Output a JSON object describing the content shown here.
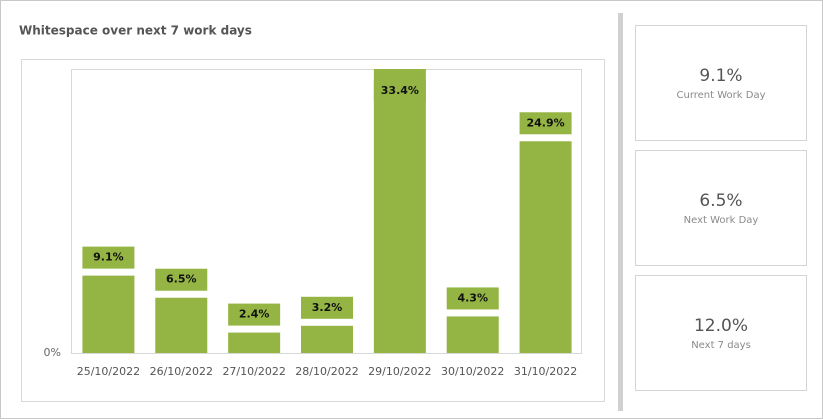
{
  "chart_data": {
    "type": "bar",
    "title": "Whitespace over next 7 work days",
    "categories": [
      "25/10/2022",
      "26/10/2022",
      "27/10/2022",
      "28/10/2022",
      "29/10/2022",
      "30/10/2022",
      "31/10/2022"
    ],
    "values": [
      9.1,
      6.5,
      2.4,
      3.2,
      33.4,
      4.3,
      24.9
    ],
    "value_labels": [
      "9.1%",
      "6.5%",
      "2.4%",
      "3.2%",
      "33.4%",
      "4.3%",
      "24.9%"
    ],
    "color": "#94b543",
    "ylim": [
      0,
      33.4
    ],
    "yticks": [
      {
        "value": 0,
        "label": "0%"
      }
    ],
    "grid": false
  },
  "cards": [
    {
      "value": "9.1%",
      "label": "Current Work Day"
    },
    {
      "value": "6.5%",
      "label": "Next Work Day"
    },
    {
      "value": "12.0%",
      "label": "Next 7 days"
    }
  ]
}
